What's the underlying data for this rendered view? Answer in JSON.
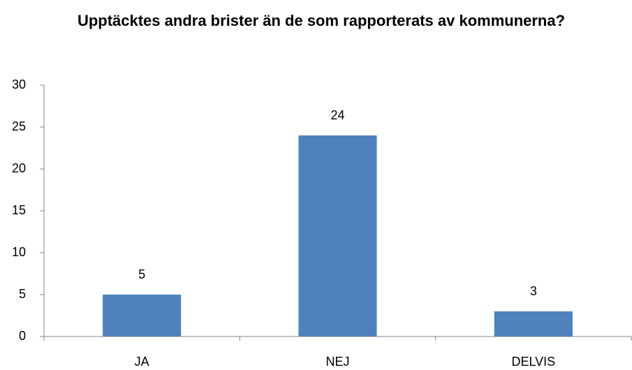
{
  "chart_data": {
    "type": "bar",
    "title": "Upptäcktes andra brister än de som rapporterats av kommunerna?",
    "categories": [
      "JA",
      "NEJ",
      "DELVIS"
    ],
    "values": [
      5,
      24,
      3
    ],
    "color": "#4f81bd",
    "ylim": [
      0,
      30
    ],
    "yticks": [
      0,
      5,
      10,
      15,
      20,
      25,
      30
    ],
    "grid": false
  }
}
